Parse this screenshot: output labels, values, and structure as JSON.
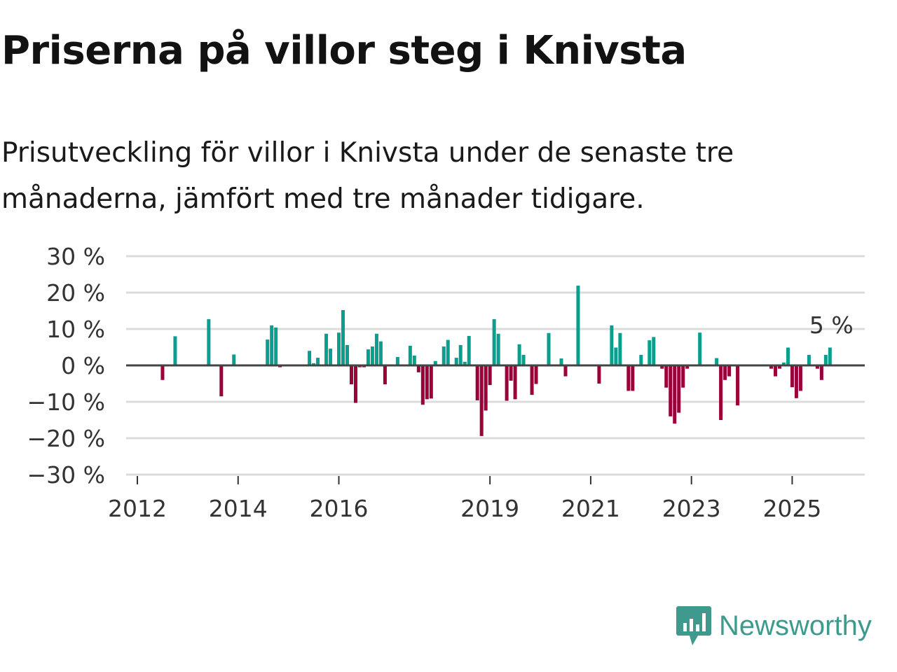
{
  "header": {
    "title": "Priserna på villor steg i Knivsta",
    "subtitle": "Prisutveckling för villor i Knivsta under de senaste tre månaderna, jämfört med tre månader tidigare."
  },
  "brand": {
    "name": "Newsworthy",
    "color": "#3d9a8d"
  },
  "colors": {
    "positive": "#0a9e8f",
    "negative": "#9b0039"
  },
  "chart_data": {
    "type": "bar",
    "title": "Priserna på villor steg i Knivsta",
    "xlabel": "",
    "ylabel": "",
    "ylim": [
      -30,
      30
    ],
    "yticks": [
      {
        "v": 30,
        "label": "30 %"
      },
      {
        "v": 20,
        "label": "20 %"
      },
      {
        "v": 10,
        "label": "10 %"
      },
      {
        "v": 0,
        "label": "0 %"
      },
      {
        "v": -10,
        "label": "−10 %"
      },
      {
        "v": -20,
        "label": "−20 %"
      },
      {
        "v": -30,
        "label": "−30 %"
      }
    ],
    "xticks": [
      {
        "v": "2012-01",
        "label": "2012"
      },
      {
        "v": "2014-01",
        "label": "2014"
      },
      {
        "v": "2016-01",
        "label": "2016"
      },
      {
        "v": "2019-01",
        "label": "2019"
      },
      {
        "v": "2021-01",
        "label": "2021"
      },
      {
        "v": "2023-01",
        "label": "2023"
      },
      {
        "v": "2025-01",
        "label": "2025"
      }
    ],
    "grid": true,
    "annotation": {
      "label": "5 %",
      "x": "2025-10",
      "value": 5
    },
    "points": [
      [
        "2012-07",
        -4
      ],
      [
        "2012-10",
        8
      ],
      [
        "2013-06",
        12.7
      ],
      [
        "2013-09",
        -8.5
      ],
      [
        "2013-12",
        3
      ],
      [
        "2014-08",
        7.1
      ],
      [
        "2014-09",
        11
      ],
      [
        "2014-10",
        10.4
      ],
      [
        "2014-11",
        -0.5
      ],
      [
        "2015-06",
        4
      ],
      [
        "2015-07",
        0.6
      ],
      [
        "2015-08",
        2.1
      ],
      [
        "2015-10",
        8.7
      ],
      [
        "2015-11",
        4.6
      ],
      [
        "2016-01",
        9
      ],
      [
        "2016-02",
        15.2
      ],
      [
        "2016-03",
        5.6
      ],
      [
        "2016-04",
        -5.2
      ],
      [
        "2016-05",
        -10.3
      ],
      [
        "2016-06",
        -0.5
      ],
      [
        "2016-07",
        -0.5
      ],
      [
        "2016-08",
        4.4
      ],
      [
        "2016-09",
        5.2
      ],
      [
        "2016-10",
        8.7
      ],
      [
        "2016-11",
        6.6
      ],
      [
        "2016-12",
        -5.2
      ],
      [
        "2017-03",
        2.3
      ],
      [
        "2017-06",
        5.4
      ],
      [
        "2017-07",
        2.7
      ],
      [
        "2017-08",
        -1.9
      ],
      [
        "2017-09",
        -10.8
      ],
      [
        "2017-10",
        -9.3
      ],
      [
        "2017-11",
        -9.1
      ],
      [
        "2017-12",
        1.2
      ],
      [
        "2018-01",
        0.3
      ],
      [
        "2018-02",
        5.2
      ],
      [
        "2018-03",
        7
      ],
      [
        "2018-05",
        2.1
      ],
      [
        "2018-06",
        5.6
      ],
      [
        "2018-07",
        1
      ],
      [
        "2018-08",
        8.1
      ],
      [
        "2018-10",
        -9.6
      ],
      [
        "2018-11",
        -19.4
      ],
      [
        "2018-12",
        -12.4
      ],
      [
        "2019-01",
        -5.4
      ],
      [
        "2019-02",
        12.7
      ],
      [
        "2019-03",
        8.7
      ],
      [
        "2019-05",
        -9.7
      ],
      [
        "2019-06",
        -4.2
      ],
      [
        "2019-07",
        -9.3
      ],
      [
        "2019-08",
        5.8
      ],
      [
        "2019-09",
        2.9
      ],
      [
        "2019-11",
        -8.1
      ],
      [
        "2019-12",
        -5.1
      ],
      [
        "2020-03",
        8.9
      ],
      [
        "2020-06",
        1.9
      ],
      [
        "2020-07",
        -3
      ],
      [
        "2020-10",
        21.9
      ],
      [
        "2021-03",
        -5
      ],
      [
        "2021-06",
        11
      ],
      [
        "2021-07",
        4.9
      ],
      [
        "2021-08",
        8.9
      ],
      [
        "2021-10",
        -7
      ],
      [
        "2021-11",
        -7
      ],
      [
        "2022-01",
        2.9
      ],
      [
        "2022-03",
        6.9
      ],
      [
        "2022-04",
        7.8
      ],
      [
        "2022-06",
        -0.9
      ],
      [
        "2022-07",
        -6.1
      ],
      [
        "2022-08",
        -14
      ],
      [
        "2022-09",
        -16
      ],
      [
        "2022-10",
        -13
      ],
      [
        "2022-11",
        -6.1
      ],
      [
        "2022-12",
        -0.9
      ],
      [
        "2023-03",
        9
      ],
      [
        "2023-07",
        2
      ],
      [
        "2023-08",
        -15
      ],
      [
        "2023-09",
        -4
      ],
      [
        "2023-10",
        -3
      ],
      [
        "2023-12",
        -11
      ],
      [
        "2024-08",
        -0.9
      ],
      [
        "2024-09",
        -3
      ],
      [
        "2024-10",
        -0.9
      ],
      [
        "2024-11",
        0.8
      ],
      [
        "2024-12",
        4.9
      ],
      [
        "2025-01",
        -6
      ],
      [
        "2025-02",
        -9
      ],
      [
        "2025-03",
        -7
      ],
      [
        "2025-05",
        2.9
      ],
      [
        "2025-07",
        -0.9
      ],
      [
        "2025-08",
        -4
      ],
      [
        "2025-09",
        2.9
      ],
      [
        "2025-10",
        4.9
      ]
    ]
  }
}
